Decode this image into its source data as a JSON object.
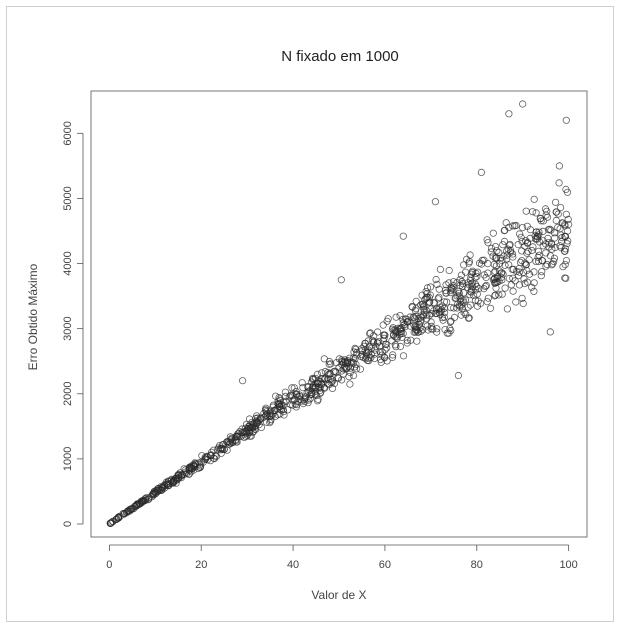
{
  "chart_data": {
    "type": "scatter",
    "title": "N fixado em 1000",
    "xlabel": "Valor de X",
    "ylabel": "Erro Obtido Máximo",
    "xlim": [
      -4,
      104
    ],
    "ylim": [
      -200,
      6650
    ],
    "xticks": [
      0,
      20,
      40,
      60,
      80,
      100
    ],
    "yticks": [
      0,
      1000,
      2000,
      3000,
      4000,
      5000,
      6000
    ],
    "point_count": 1000,
    "marker": "open-circle",
    "grid": false,
    "legend": "none",
    "series": [
      {
        "points": [
          [
            0.3,
            12
          ],
          [
            0.8,
            40
          ],
          [
            1.5,
            70
          ],
          [
            2.0,
            110
          ],
          [
            3.0,
            160
          ],
          [
            4.0,
            200
          ],
          [
            5.0,
            240
          ],
          [
            6.0,
            300
          ],
          [
            7.0,
            350
          ],
          [
            8.0,
            400
          ],
          [
            10.0,
            480
          ],
          [
            12.0,
            550
          ],
          [
            15.0,
            700
          ],
          [
            18.0,
            850
          ],
          [
            20.0,
            950
          ],
          [
            22.0,
            1050
          ],
          [
            25.0,
            1150
          ],
          [
            28.0,
            1350
          ],
          [
            29.0,
            2200
          ],
          [
            30.0,
            1400
          ],
          [
            35.0,
            1700
          ],
          [
            40.0,
            1900
          ],
          [
            45.0,
            2100
          ],
          [
            50.0,
            2400
          ],
          [
            50.5,
            3750
          ],
          [
            55.0,
            2600
          ],
          [
            60.0,
            2900
          ],
          [
            64.0,
            4420
          ],
          [
            65.0,
            3100
          ],
          [
            70.0,
            3300
          ],
          [
            71.0,
            4950
          ],
          [
            75.0,
            3600
          ],
          [
            76.0,
            2280
          ],
          [
            80.0,
            3800
          ],
          [
            81.0,
            5400
          ],
          [
            85.0,
            4000
          ],
          [
            87.0,
            6300
          ],
          [
            90.0,
            6450
          ],
          [
            92.0,
            4200
          ],
          [
            95.0,
            4300
          ],
          [
            96.0,
            2950
          ],
          [
            98.0,
            5500
          ],
          [
            99.5,
            6200
          ],
          [
            100.0,
            4600
          ]
        ]
      }
    ]
  }
}
